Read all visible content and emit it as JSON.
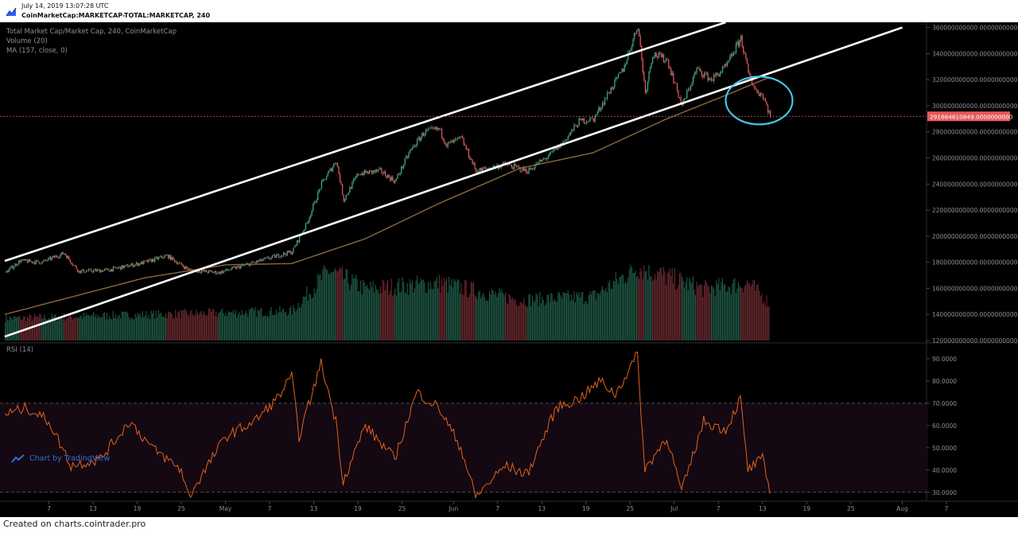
{
  "header": {
    "date": "July 14, 2019 13:07:28 UTC",
    "symbol": "CoinMarketCap:MARKETCAP-TOTAL:MARKETCAP, 240"
  },
  "legend": {
    "main": "Total Market Cap/Market Cap, 240, CoinMarketCap",
    "volume": "Volume (20)",
    "ma": "MA (157, close, 0)",
    "rsi": "RSI (14)"
  },
  "watermark": "Chart by TradingView",
  "footer": "Created on charts.cointrader.pro",
  "colors": {
    "background": "#000000",
    "up": "#3aa981",
    "down": "#e0555b",
    "ma": "#8b6a3c",
    "rsi": "#e2621b",
    "channel": "#ffffff",
    "annotation_circle": "#46c6e8",
    "price_label": "#e85a5a"
  },
  "chart_data": [
    {
      "type": "candlestick",
      "title": "Total Market Cap/Market Cap, 240, CoinMarketCap",
      "x_ticks": [
        "7",
        "13",
        "19",
        "25",
        "May",
        "7",
        "13",
        "19",
        "25",
        "Jun",
        "7",
        "13",
        "19",
        "25",
        "Jul",
        "7",
        "13",
        "19",
        "25",
        "Aug",
        "7"
      ],
      "y_ticks": [
        "360000000000.0000000000",
        "340000000000.0000000000",
        "320000000000.0000000000",
        "300000000000.0000000000",
        "280000000000.0000000000",
        "260000000000.0000000000",
        "240000000000.0000000000",
        "220000000000.0000000000",
        "200000000000.0000000000",
        "180000000000.0000000000",
        "160000000000.0000000000",
        "140000000000.0000000000",
        "120000000000.0000000000"
      ],
      "ylim": [
        120000000000,
        364000000000
      ],
      "last_price_label": "291864610849.0000000000",
      "last_price": 291864610849,
      "close_path": [
        {
          "d": "2019-04-01",
          "v": 172000000000
        },
        {
          "d": "2019-04-03",
          "v": 181000000000
        },
        {
          "d": "2019-04-06",
          "v": 180000000000
        },
        {
          "d": "2019-04-09",
          "v": 187000000000
        },
        {
          "d": "2019-04-11",
          "v": 173000000000
        },
        {
          "d": "2019-04-15",
          "v": 174000000000
        },
        {
          "d": "2019-04-20",
          "v": 180000000000
        },
        {
          "d": "2019-04-23",
          "v": 185000000000
        },
        {
          "d": "2019-04-26",
          "v": 174000000000
        },
        {
          "d": "2019-04-30",
          "v": 172000000000
        },
        {
          "d": "2019-05-05",
          "v": 180000000000
        },
        {
          "d": "2019-05-08",
          "v": 185000000000
        },
        {
          "d": "2019-05-10",
          "v": 188000000000
        },
        {
          "d": "2019-05-12",
          "v": 210000000000
        },
        {
          "d": "2019-05-14",
          "v": 240000000000
        },
        {
          "d": "2019-05-16",
          "v": 258000000000
        },
        {
          "d": "2019-05-17",
          "v": 228000000000
        },
        {
          "d": "2019-05-19",
          "v": 248000000000
        },
        {
          "d": "2019-05-22",
          "v": 250000000000
        },
        {
          "d": "2019-05-24",
          "v": 242000000000
        },
        {
          "d": "2019-05-26",
          "v": 265000000000
        },
        {
          "d": "2019-05-28",
          "v": 280000000000
        },
        {
          "d": "2019-05-30",
          "v": 282000000000
        },
        {
          "d": "2019-05-31",
          "v": 270000000000
        },
        {
          "d": "2019-06-02",
          "v": 275000000000
        },
        {
          "d": "2019-06-04",
          "v": 250000000000
        },
        {
          "d": "2019-06-08",
          "v": 255000000000
        },
        {
          "d": "2019-06-11",
          "v": 250000000000
        },
        {
          "d": "2019-06-14",
          "v": 262000000000
        },
        {
          "d": "2019-06-16",
          "v": 273000000000
        },
        {
          "d": "2019-06-18",
          "v": 288000000000
        },
        {
          "d": "2019-06-20",
          "v": 290000000000
        },
        {
          "d": "2019-06-22",
          "v": 310000000000
        },
        {
          "d": "2019-06-24",
          "v": 328000000000
        },
        {
          "d": "2019-06-26",
          "v": 362000000000
        },
        {
          "d": "2019-06-27",
          "v": 310000000000
        },
        {
          "d": "2019-06-28",
          "v": 340000000000
        },
        {
          "d": "2019-06-30",
          "v": 335000000000
        },
        {
          "d": "2019-07-02",
          "v": 300000000000
        },
        {
          "d": "2019-07-04",
          "v": 328000000000
        },
        {
          "d": "2019-07-06",
          "v": 320000000000
        },
        {
          "d": "2019-07-08",
          "v": 330000000000
        },
        {
          "d": "2019-07-10",
          "v": 352000000000
        },
        {
          "d": "2019-07-11",
          "v": 325000000000
        },
        {
          "d": "2019-07-12",
          "v": 312000000000
        },
        {
          "d": "2019-07-13",
          "v": 308000000000
        },
        {
          "d": "2019-07-14",
          "v": 291864610849
        }
      ],
      "ma_path": [
        {
          "d": "2019-04-01",
          "v": 140000000000
        },
        {
          "d": "2019-04-20",
          "v": 168000000000
        },
        {
          "d": "2019-05-01",
          "v": 178000000000
        },
        {
          "d": "2019-05-10",
          "v": 179000000000
        },
        {
          "d": "2019-05-20",
          "v": 198000000000
        },
        {
          "d": "2019-05-30",
          "v": 225000000000
        },
        {
          "d": "2019-06-10",
          "v": 252000000000
        },
        {
          "d": "2019-06-20",
          "v": 264000000000
        },
        {
          "d": "2019-06-30",
          "v": 290000000000
        },
        {
          "d": "2019-07-08",
          "v": 308000000000
        },
        {
          "d": "2019-07-14",
          "v": 322000000000
        }
      ],
      "channel_upper": [
        {
          "d": "2019-04-01",
          "v": 181000000000
        },
        {
          "d": "2019-07-08",
          "v": 364000000000
        }
      ],
      "channel_lower": [
        {
          "d": "2019-04-01",
          "v": 123000000000
        },
        {
          "d": "2019-08-01",
          "v": 360000000000
        }
      ],
      "annotation": "circle around 2019-07-11 to 2019-07-14"
    },
    {
      "type": "bar",
      "title": "Volume (20)",
      "volume_path": [
        {
          "d": "2019-04-01",
          "v": 0.3
        },
        {
          "d": "2019-04-20",
          "v": 0.35
        },
        {
          "d": "2019-05-10",
          "v": 0.4
        },
        {
          "d": "2019-05-15",
          "v": 0.95
        },
        {
          "d": "2019-05-20",
          "v": 0.7
        },
        {
          "d": "2019-05-30",
          "v": 0.78
        },
        {
          "d": "2019-06-10",
          "v": 0.55
        },
        {
          "d": "2019-06-20",
          "v": 0.6
        },
        {
          "d": "2019-06-26",
          "v": 1.0
        },
        {
          "d": "2019-07-05",
          "v": 0.7
        },
        {
          "d": "2019-07-11",
          "v": 0.78
        },
        {
          "d": "2019-07-14",
          "v": 0.5
        }
      ]
    },
    {
      "type": "line",
      "title": "RSI (14)",
      "y_ticks": [
        "90.0000",
        "80.0000",
        "70.0000",
        "60.0000",
        "50.0000",
        "40.0000",
        "30.0000"
      ],
      "ylim": [
        26,
        95
      ],
      "bands": [
        30,
        70
      ],
      "rsi_path": [
        {
          "d": "2019-04-01",
          "v": 65
        },
        {
          "d": "2019-04-04",
          "v": 68
        },
        {
          "d": "2019-04-07",
          "v": 62
        },
        {
          "d": "2019-04-10",
          "v": 42
        },
        {
          "d": "2019-04-14",
          "v": 45
        },
        {
          "d": "2019-04-18",
          "v": 62
        },
        {
          "d": "2019-04-21",
          "v": 50
        },
        {
          "d": "2019-04-25",
          "v": 40
        },
        {
          "d": "2019-04-26",
          "v": 28
        },
        {
          "d": "2019-05-01",
          "v": 55
        },
        {
          "d": "2019-05-05",
          "v": 62
        },
        {
          "d": "2019-05-08",
          "v": 72
        },
        {
          "d": "2019-05-10",
          "v": 82
        },
        {
          "d": "2019-05-11",
          "v": 55
        },
        {
          "d": "2019-05-14",
          "v": 88
        },
        {
          "d": "2019-05-16",
          "v": 62
        },
        {
          "d": "2019-05-17",
          "v": 35
        },
        {
          "d": "2019-05-20",
          "v": 60
        },
        {
          "d": "2019-05-24",
          "v": 45
        },
        {
          "d": "2019-05-27",
          "v": 75
        },
        {
          "d": "2019-05-30",
          "v": 68
        },
        {
          "d": "2019-06-02",
          "v": 50
        },
        {
          "d": "2019-06-04",
          "v": 28
        },
        {
          "d": "2019-06-08",
          "v": 42
        },
        {
          "d": "2019-06-11",
          "v": 38
        },
        {
          "d": "2019-06-15",
          "v": 68
        },
        {
          "d": "2019-06-18",
          "v": 72
        },
        {
          "d": "2019-06-21",
          "v": 80
        },
        {
          "d": "2019-06-23",
          "v": 74
        },
        {
          "d": "2019-06-26",
          "v": 92
        },
        {
          "d": "2019-06-27",
          "v": 40
        },
        {
          "d": "2019-06-30",
          "v": 55
        },
        {
          "d": "2019-07-02",
          "v": 30
        },
        {
          "d": "2019-07-05",
          "v": 62
        },
        {
          "d": "2019-07-08",
          "v": 58
        },
        {
          "d": "2019-07-10",
          "v": 72
        },
        {
          "d": "2019-07-11",
          "v": 40
        },
        {
          "d": "2019-07-13",
          "v": 45
        },
        {
          "d": "2019-07-14",
          "v": 30
        }
      ]
    }
  ]
}
